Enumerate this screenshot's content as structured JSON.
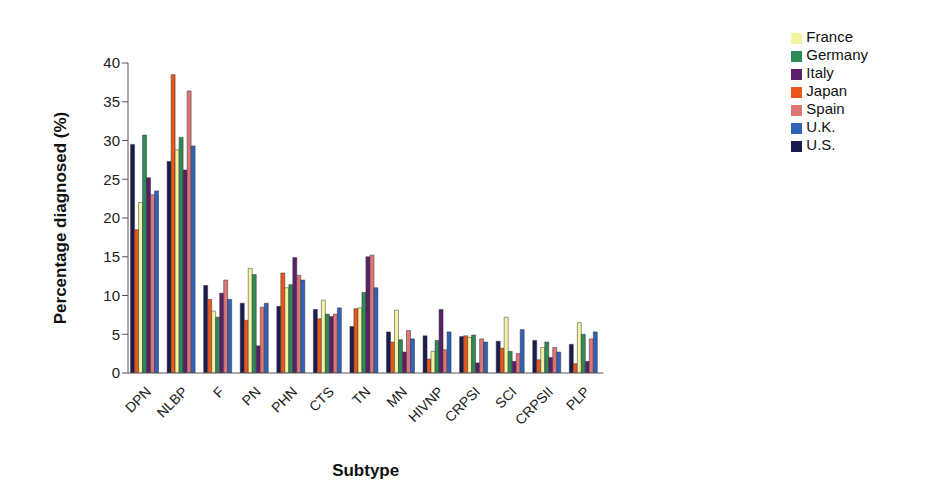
{
  "chart_data": {
    "type": "bar",
    "x_label": "Subtype",
    "y_label": "Percentage diagnosed (%)",
    "categories": [
      "DPN",
      "NLBP",
      "F",
      "PN",
      "PHN",
      "CTS",
      "TN",
      "MN",
      "HIVNP",
      "CRPSI",
      "SCI",
      "CRPSII",
      "PLP"
    ],
    "series": [
      {
        "name": "U.S.",
        "color": "#1b1b4d",
        "values": [
          29.5,
          27.3,
          11.3,
          9,
          8.6,
          8.2,
          6,
          5.3,
          4.8,
          4.7,
          4.1,
          4.2,
          3.7
        ]
      },
      {
        "name": "Japan",
        "color": "#e8581c",
        "values": [
          18.5,
          38.5,
          9.5,
          6.8,
          12.9,
          7,
          8.3,
          4,
          1.8,
          4.8,
          3.2,
          1.7,
          1.2
        ]
      },
      {
        "name": "France",
        "color": "#f4f3a2",
        "values": [
          22,
          28.8,
          8,
          13.5,
          11,
          9.4,
          8.4,
          8.1,
          2.8,
          4.6,
          7.2,
          3.3,
          6.5
        ]
      },
      {
        "name": "Germany",
        "color": "#2e8b57",
        "values": [
          30.7,
          30.4,
          7.2,
          12.7,
          11.4,
          7.6,
          10.4,
          4.3,
          4.2,
          4.9,
          2.8,
          4,
          5
        ]
      },
      {
        "name": "Italy",
        "color": "#5b1f6b",
        "values": [
          25.2,
          26.2,
          10.3,
          3.5,
          14.9,
          7.3,
          15,
          2.7,
          8.2,
          1.3,
          1.5,
          2,
          1.5
        ]
      },
      {
        "name": "Spain",
        "color": "#e07575",
        "values": [
          23,
          36.4,
          12,
          8.5,
          12.6,
          7.6,
          15.2,
          5.5,
          3,
          4.4,
          2.5,
          3.3,
          4.4
        ]
      },
      {
        "name": "U.K.",
        "color": "#3062b8",
        "values": [
          23.5,
          29.3,
          9.5,
          9,
          12,
          8.4,
          11,
          4.4,
          5.3,
          4,
          5.6,
          2.7,
          5.3
        ]
      }
    ],
    "ylim": [
      0,
      40
    ],
    "yticks": [
      0,
      5,
      10,
      15,
      20,
      25,
      30,
      35,
      40
    ],
    "grid": false,
    "legend": "top-right"
  }
}
